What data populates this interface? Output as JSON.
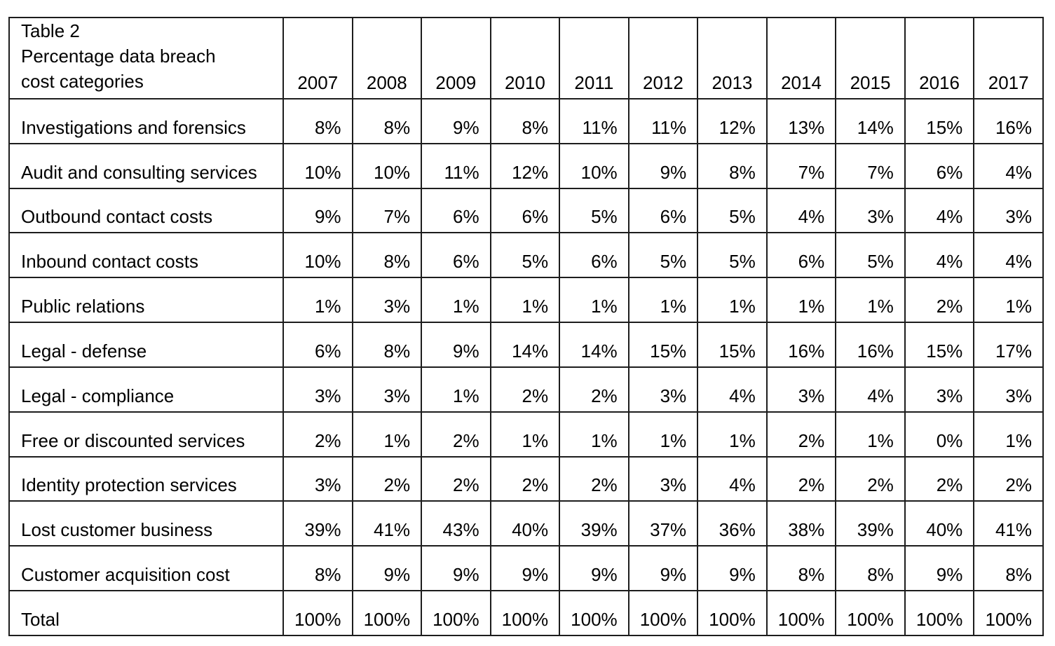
{
  "header": {
    "title_line1": "Table 2",
    "title_line2": "Percentage data breach",
    "title_line3": "cost categories"
  },
  "chart_data": {
    "type": "table",
    "title": "Table 2 Percentage data breach cost categories",
    "columns": [
      "2007",
      "2008",
      "2009",
      "2010",
      "2011",
      "2012",
      "2013",
      "2014",
      "2015",
      "2016",
      "2017"
    ],
    "rows": [
      {
        "label": "Investigations and forensics",
        "values": [
          "8%",
          "8%",
          "9%",
          "8%",
          "11%",
          "11%",
          "12%",
          "13%",
          "14%",
          "15%",
          "16%"
        ]
      },
      {
        "label": "Audit and consulting services",
        "values": [
          "10%",
          "10%",
          "11%",
          "12%",
          "10%",
          "9%",
          "8%",
          "7%",
          "7%",
          "6%",
          "4%"
        ]
      },
      {
        "label": "Outbound contact costs",
        "values": [
          "9%",
          "7%",
          "6%",
          "6%",
          "5%",
          "6%",
          "5%",
          "4%",
          "3%",
          "4%",
          "3%"
        ]
      },
      {
        "label": "Inbound contact costs",
        "values": [
          "10%",
          "8%",
          "6%",
          "5%",
          "6%",
          "5%",
          "5%",
          "6%",
          "5%",
          "4%",
          "4%"
        ]
      },
      {
        "label": "Public relations",
        "values": [
          "1%",
          "3%",
          "1%",
          "1%",
          "1%",
          "1%",
          "1%",
          "1%",
          "1%",
          "2%",
          "1%"
        ]
      },
      {
        "label": "Legal - defense",
        "values": [
          "6%",
          "8%",
          "9%",
          "14%",
          "14%",
          "15%",
          "15%",
          "16%",
          "16%",
          "15%",
          "17%"
        ]
      },
      {
        "label": "Legal - compliance",
        "values": [
          "3%",
          "3%",
          "1%",
          "2%",
          "2%",
          "3%",
          "4%",
          "3%",
          "4%",
          "3%",
          "3%"
        ]
      },
      {
        "label": "Free or discounted services",
        "values": [
          "2%",
          "1%",
          "2%",
          "1%",
          "1%",
          "1%",
          "1%",
          "2%",
          "1%",
          "0%",
          "1%"
        ]
      },
      {
        "label": "Identity protection services",
        "values": [
          "3%",
          "2%",
          "2%",
          "2%",
          "2%",
          "3%",
          "4%",
          "2%",
          "2%",
          "2%",
          "2%"
        ]
      },
      {
        "label": "Lost customer business",
        "values": [
          "39%",
          "41%",
          "43%",
          "40%",
          "39%",
          "37%",
          "36%",
          "38%",
          "39%",
          "40%",
          "41%"
        ]
      },
      {
        "label": "Customer acquisition cost",
        "values": [
          "8%",
          "9%",
          "9%",
          "9%",
          "9%",
          "9%",
          "9%",
          "8%",
          "8%",
          "9%",
          "8%"
        ]
      },
      {
        "label": "Total",
        "values": [
          "100%",
          "100%",
          "100%",
          "100%",
          "100%",
          "100%",
          "100%",
          "100%",
          "100%",
          "100%",
          "100%"
        ]
      }
    ],
    "colors": {
      "border": "#1d1d1d",
      "text": "#000000",
      "background": "#ffffff"
    }
  }
}
